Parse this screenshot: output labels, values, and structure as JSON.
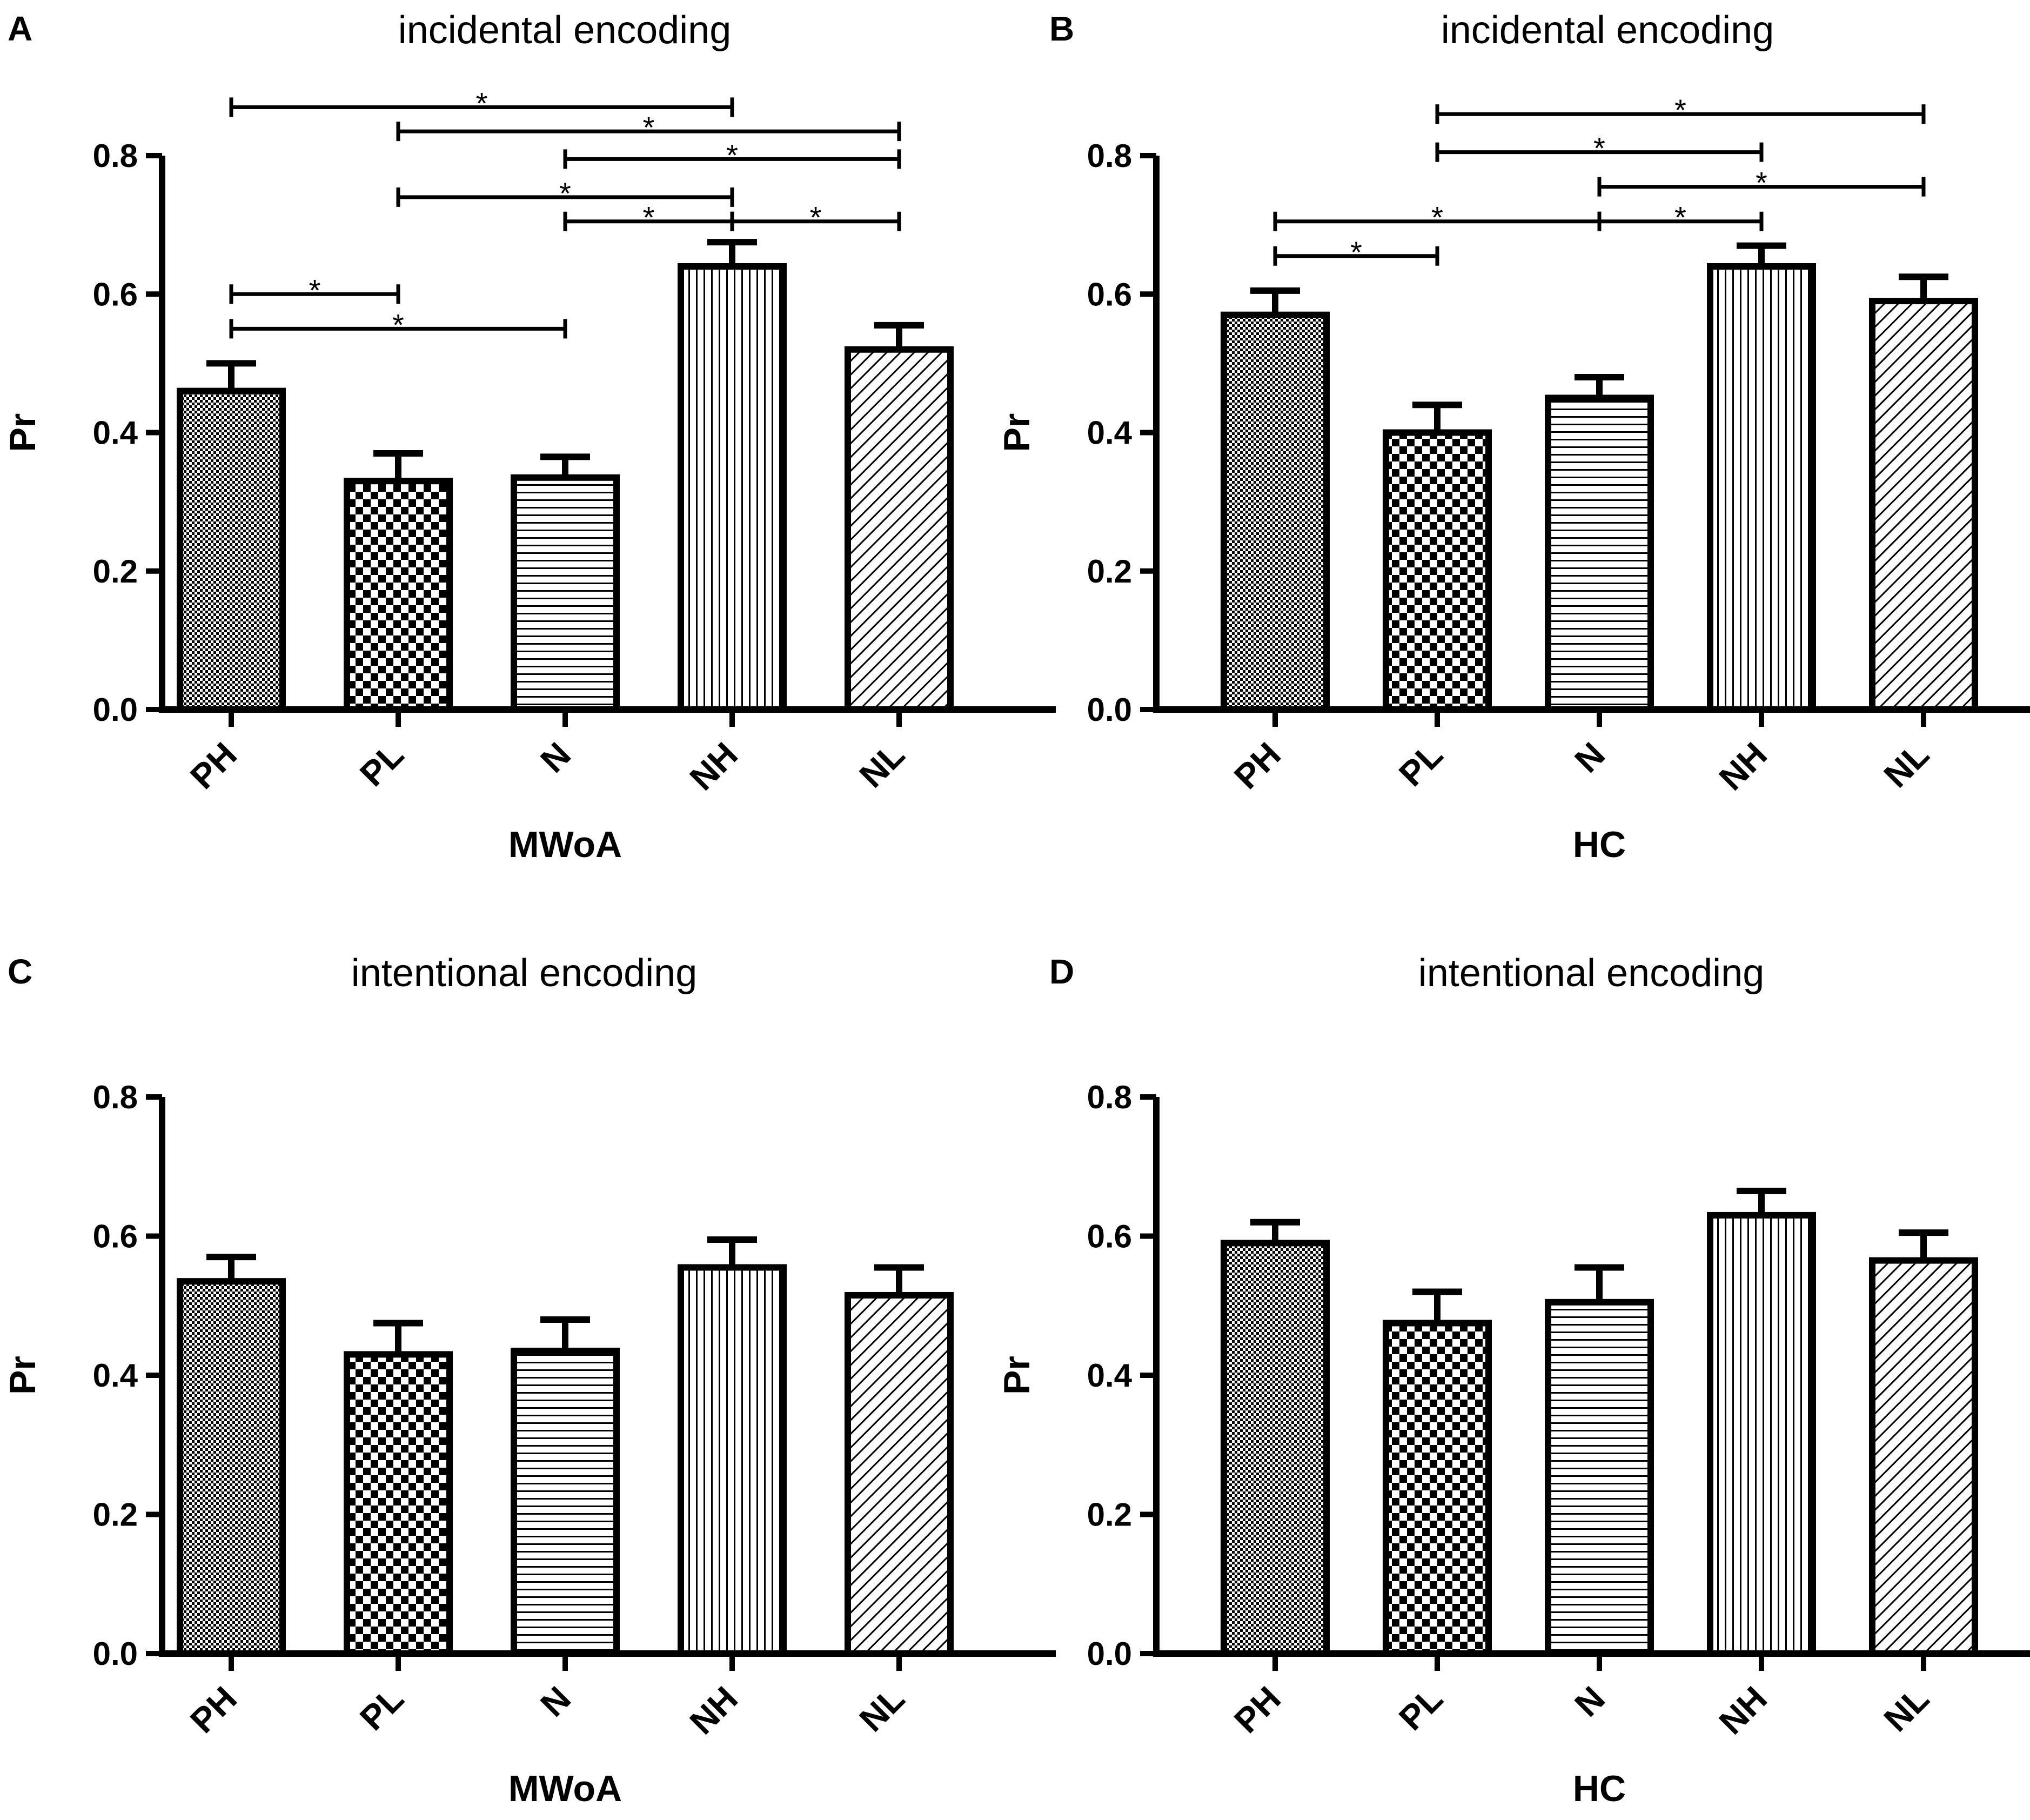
{
  "chart_data": [
    {
      "panel": "A",
      "type": "bar",
      "title": "incidental encoding",
      "xlabel": "MWoA",
      "ylabel": "Pr",
      "categories": [
        "PH",
        "PL",
        "N",
        "NH",
        "NL"
      ],
      "values": [
        0.46,
        0.33,
        0.335,
        0.64,
        0.52
      ],
      "errors": [
        0.04,
        0.04,
        0.03,
        0.035,
        0.035
      ],
      "patterns": [
        "fine-check",
        "checker",
        "horizontal",
        "vertical",
        "diagonal"
      ],
      "ylim": [
        0,
        0.8
      ],
      "yticks": [
        "0.0",
        "0.2",
        "0.4",
        "0.6",
        "0.8"
      ],
      "significance": [
        {
          "from": 0,
          "to": 3,
          "level": 0.87,
          "label": "*"
        },
        {
          "from": 1,
          "to": 4,
          "level": 0.835,
          "label": "*"
        },
        {
          "from": 2,
          "to": 4,
          "level": 0.795,
          "label": "*"
        },
        {
          "from": 1,
          "to": 3,
          "level": 0.74,
          "label": "*"
        },
        {
          "from": 2,
          "to": 3,
          "level": 0.705,
          "label": "*"
        },
        {
          "from": 3,
          "to": 4,
          "level": 0.705,
          "label": "*"
        },
        {
          "from": 0,
          "to": 1,
          "level": 0.6,
          "label": "*"
        },
        {
          "from": 0,
          "to": 2,
          "level": 0.55,
          "label": "*"
        }
      ]
    },
    {
      "panel": "B",
      "type": "bar",
      "title": "incidental encoding",
      "xlabel": "HC",
      "ylabel": "Pr",
      "categories": [
        "PH",
        "PL",
        "N",
        "NH",
        "NL"
      ],
      "values": [
        0.57,
        0.4,
        0.45,
        0.64,
        0.59
      ],
      "errors": [
        0.035,
        0.04,
        0.03,
        0.03,
        0.035
      ],
      "patterns": [
        "fine-check",
        "checker",
        "horizontal",
        "vertical",
        "diagonal"
      ],
      "ylim": [
        0,
        0.8
      ],
      "yticks": [
        "0.0",
        "0.2",
        "0.4",
        "0.6",
        "0.8"
      ],
      "significance": [
        {
          "from": 1,
          "to": 4,
          "level": 0.86,
          "label": "*"
        },
        {
          "from": 1,
          "to": 3,
          "level": 0.805,
          "label": "*"
        },
        {
          "from": 2,
          "to": 4,
          "level": 0.755,
          "label": "*"
        },
        {
          "from": 0,
          "to": 2,
          "level": 0.705,
          "label": "*"
        },
        {
          "from": 2,
          "to": 3,
          "level": 0.705,
          "label": "*"
        },
        {
          "from": 0,
          "to": 1,
          "level": 0.655,
          "label": "*"
        }
      ]
    },
    {
      "panel": "C",
      "type": "bar",
      "title": "intentional encoding",
      "xlabel": "MWoA",
      "ylabel": "Pr",
      "categories": [
        "PH",
        "PL",
        "N",
        "NH",
        "NL"
      ],
      "values": [
        0.535,
        0.43,
        0.435,
        0.555,
        0.515
      ],
      "errors": [
        0.035,
        0.045,
        0.045,
        0.04,
        0.04
      ],
      "patterns": [
        "fine-check",
        "checker",
        "horizontal",
        "vertical",
        "diagonal"
      ],
      "ylim": [
        0,
        0.8
      ],
      "yticks": [
        "0.0",
        "0.2",
        "0.4",
        "0.6",
        "0.8"
      ],
      "significance": []
    },
    {
      "panel": "D",
      "type": "bar",
      "title": "intentional encoding",
      "xlabel": "HC",
      "ylabel": "Pr",
      "categories": [
        "PH",
        "PL",
        "N",
        "NH",
        "NL"
      ],
      "values": [
        0.59,
        0.475,
        0.505,
        0.63,
        0.565
      ],
      "errors": [
        0.03,
        0.045,
        0.05,
        0.035,
        0.04
      ],
      "patterns": [
        "fine-check",
        "checker",
        "horizontal",
        "vertical",
        "diagonal"
      ],
      "ylim": [
        0,
        0.8
      ],
      "yticks": [
        "0.0",
        "0.2",
        "0.4",
        "0.6",
        "0.8"
      ],
      "significance": []
    }
  ]
}
